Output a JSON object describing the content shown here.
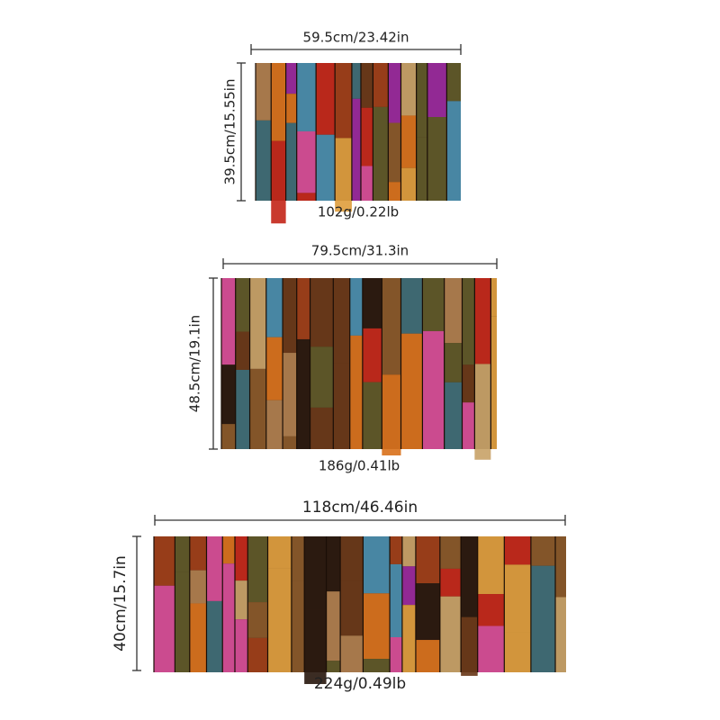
{
  "items": [
    {
      "width": "59.5cm/23.42in",
      "height": "39.5cm/15.55in",
      "weight": "102g/0.22lb"
    },
    {
      "width": "79.5cm/31.3in",
      "height": "48.5cm/19.1in",
      "weight": "186g/0.41lb"
    },
    {
      "width": "118cm/46.46in",
      "height": "40cm/15.7in",
      "weight": "224g/0.49lb"
    }
  ]
}
